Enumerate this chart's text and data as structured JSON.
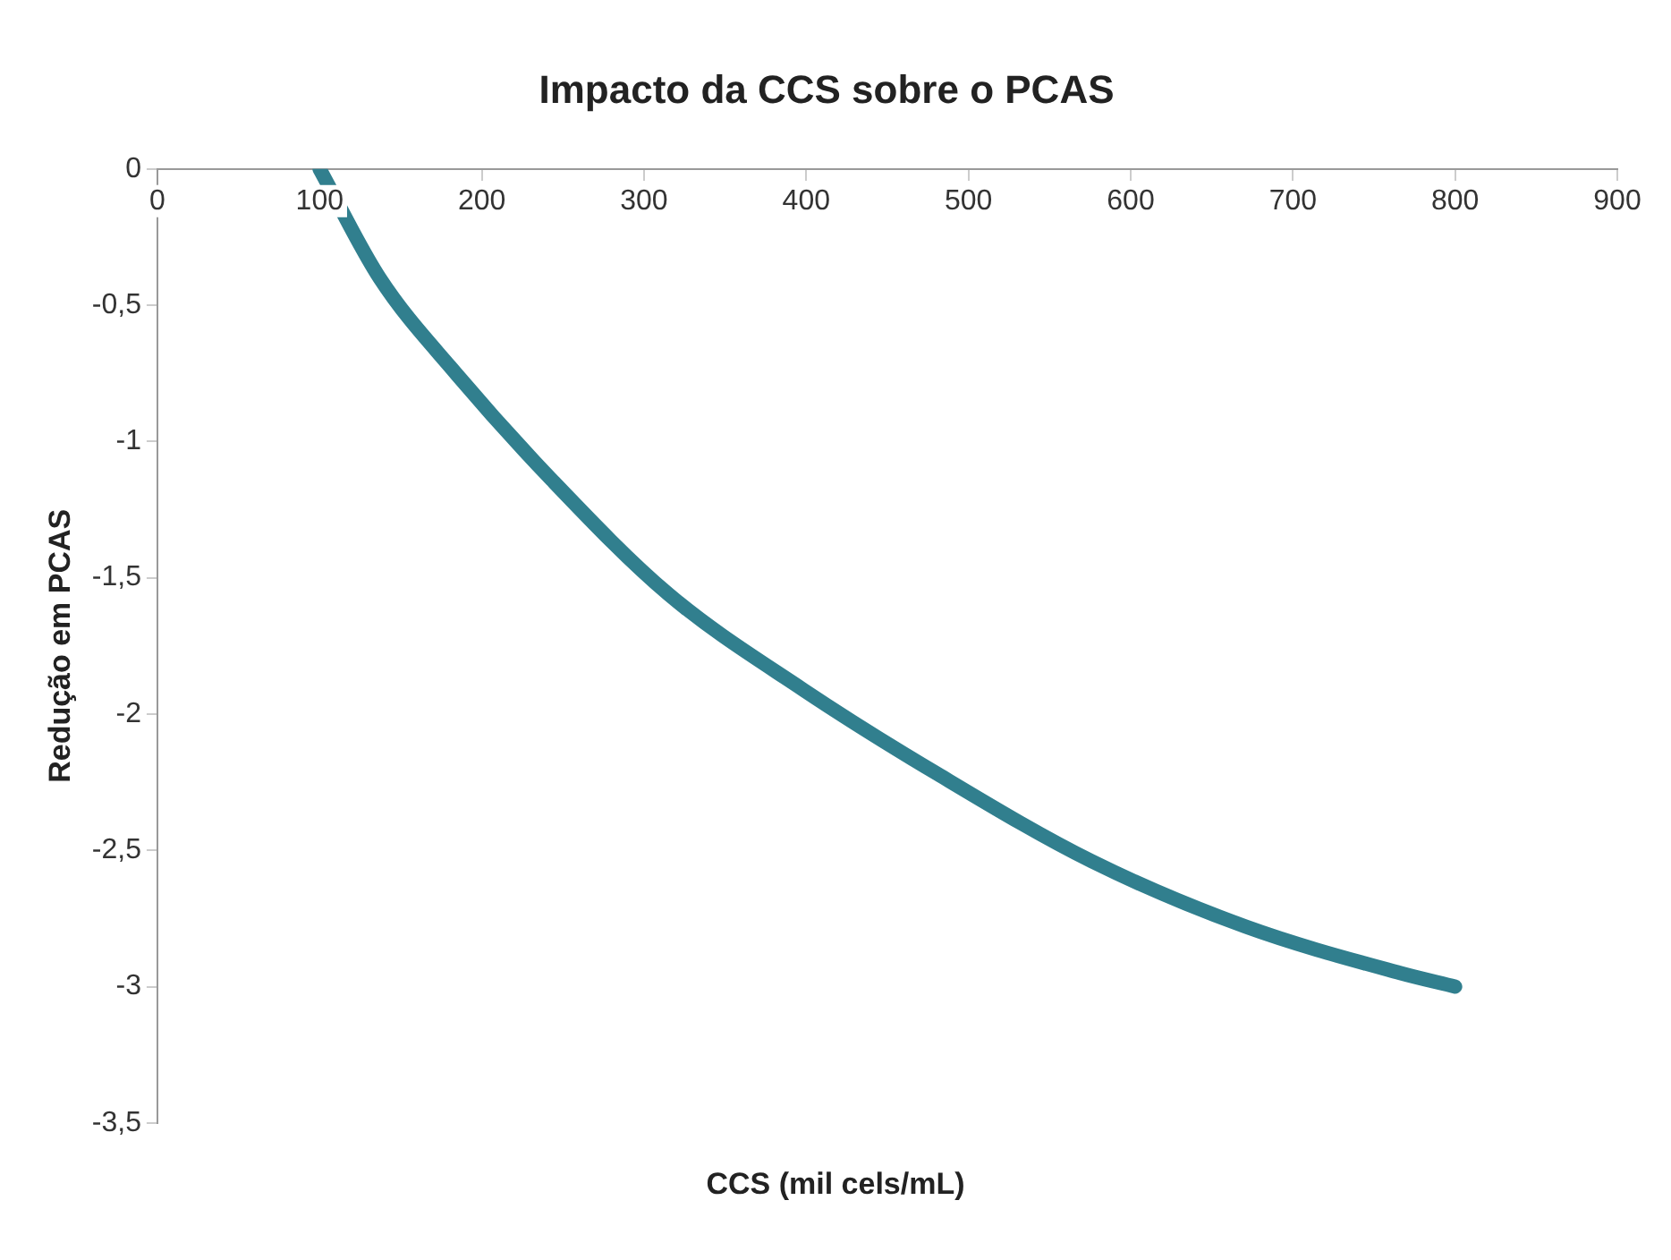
{
  "chart_data": {
    "type": "line",
    "title": "Impacto da CCS sobre o PCAS",
    "xlabel": "CCS (mil cels/mL)",
    "ylabel": "Redução em PCAS",
    "x": [
      100,
      137,
      184,
      243,
      315,
      398,
      481,
      576,
      671,
      766,
      800
    ],
    "series": [
      {
        "color": "#317f8e",
        "values": [
          0,
          -0.4,
          -0.75,
          -1.14,
          -1.56,
          -1.91,
          -2.22,
          -2.54,
          -2.78,
          -2.95,
          -3.0
        ]
      }
    ],
    "xlim": [
      0,
      900
    ],
    "xticks": [
      0,
      100,
      200,
      300,
      400,
      500,
      600,
      700,
      800,
      900
    ],
    "ylim": [
      -3.5,
      0
    ],
    "yticks": [
      {
        "value": 0,
        "label": "0"
      },
      {
        "value": -0.5,
        "label": "-0,5"
      },
      {
        "value": -1,
        "label": "-1"
      },
      {
        "value": -1.5,
        "label": "-1,5"
      },
      {
        "value": -2,
        "label": "-2"
      },
      {
        "value": -2.5,
        "label": "-2,5"
      },
      {
        "value": -3,
        "label": "-3"
      },
      {
        "value": -3.5,
        "label": "-3,5"
      }
    ],
    "grid": false,
    "legend": false,
    "marker": "none",
    "line_style": "solid"
  }
}
